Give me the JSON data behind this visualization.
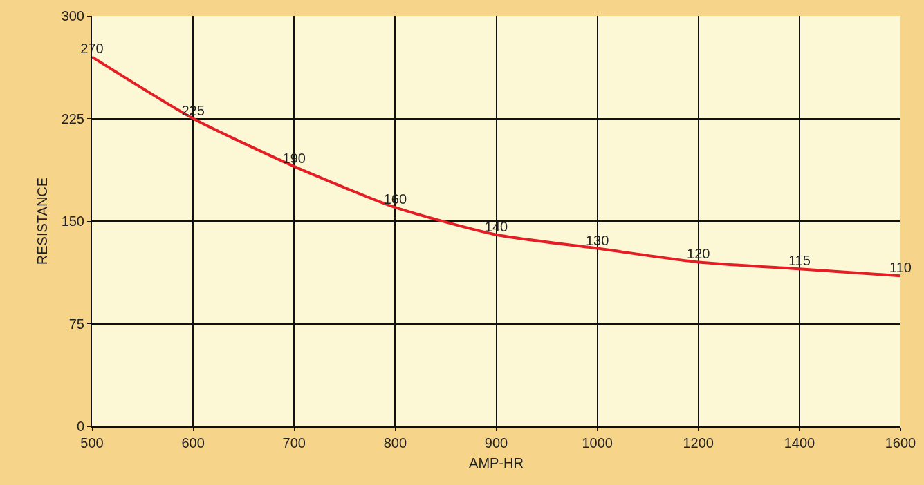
{
  "chart_data": {
    "type": "line",
    "xlabel": "AMP-HR",
    "ylabel": "RESISTANCE",
    "categories": [
      "500",
      "600",
      "700",
      "800",
      "900",
      "1000",
      "1200",
      "1400",
      "1600"
    ],
    "values": [
      270,
      225,
      190,
      160,
      140,
      130,
      120,
      115,
      110
    ],
    "color": "#e31e24",
    "data_labels": true,
    "marker": "none",
    "line_style": "solid",
    "ylim": [
      0,
      300
    ],
    "yticks": [
      0,
      75,
      150,
      225,
      300
    ],
    "grid": true,
    "legend": false
  }
}
